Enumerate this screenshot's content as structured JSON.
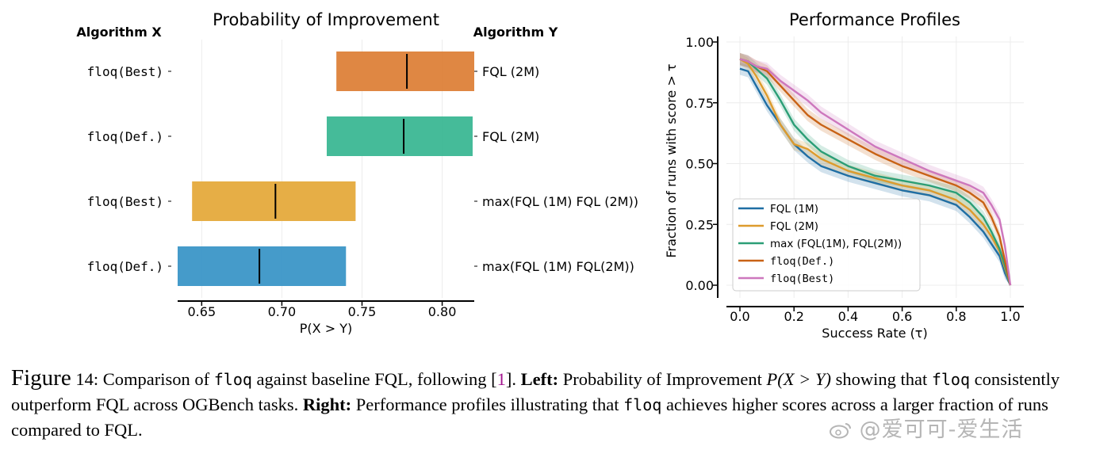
{
  "chart_data": [
    {
      "type": "bar",
      "title": "Probability of Improvement",
      "left_header": "Algorithm X",
      "right_header": "Algorithm Y",
      "xlabel": "P(X > Y)",
      "xlim": [
        0.635,
        0.82
      ],
      "xticks": [
        "0.65",
        "0.70",
        "0.75",
        "0.80"
      ],
      "rows": [
        {
          "x_label": "floq(Best)",
          "y_label": "FQL (2M)",
          "low": 0.734,
          "high": 0.82,
          "median": 0.778,
          "color": "#dd8139"
        },
        {
          "x_label": "floq(Def.)",
          "y_label": "FQL (2M)",
          "low": 0.728,
          "high": 0.819,
          "median": 0.776,
          "color": "#3bb793"
        },
        {
          "x_label": "floq(Best)",
          "y_label": "max(FQL (1M) FQL (2M))",
          "low": 0.644,
          "high": 0.746,
          "median": 0.696,
          "color": "#e5aa3c"
        },
        {
          "x_label": "floq(Def.)",
          "y_label": "max(FQL (1M) FQL(2M))",
          "low": 0.635,
          "high": 0.74,
          "median": 0.686,
          "color": "#3b96c7"
        }
      ]
    },
    {
      "type": "line",
      "title": "Performance Profiles",
      "xlabel": "Success Rate (τ)",
      "ylabel": "Fraction of runs with score > τ",
      "xlim": [
        0,
        1
      ],
      "ylim": [
        0,
        1
      ],
      "xticks": [
        "0.0",
        "0.2",
        "0.4",
        "0.6",
        "0.8",
        "1.0"
      ],
      "yticks": [
        "0.00",
        "0.25",
        "0.50",
        "0.75",
        "1.00"
      ],
      "grid": true,
      "legend_position": "lower-left",
      "series": [
        {
          "name": "FQL (1M)",
          "color": "#1f6ea4",
          "band": 0.025,
          "x": [
            0,
            0.03,
            0.06,
            0.1,
            0.15,
            0.2,
            0.25,
            0.3,
            0.4,
            0.5,
            0.6,
            0.7,
            0.8,
            0.85,
            0.9,
            0.93,
            0.96,
            0.98,
            1.0
          ],
          "y": [
            0.89,
            0.88,
            0.82,
            0.74,
            0.66,
            0.58,
            0.53,
            0.49,
            0.45,
            0.42,
            0.39,
            0.37,
            0.33,
            0.28,
            0.22,
            0.17,
            0.12,
            0.05,
            0.0
          ]
        },
        {
          "name": "FQL (2M)",
          "color": "#dd9b2d",
          "band": 0.025,
          "x": [
            0,
            0.03,
            0.06,
            0.1,
            0.15,
            0.2,
            0.25,
            0.3,
            0.4,
            0.5,
            0.6,
            0.7,
            0.8,
            0.85,
            0.9,
            0.93,
            0.96,
            0.98,
            1.0
          ],
          "y": [
            0.93,
            0.91,
            0.86,
            0.78,
            0.66,
            0.58,
            0.56,
            0.52,
            0.47,
            0.44,
            0.41,
            0.39,
            0.35,
            0.31,
            0.25,
            0.2,
            0.14,
            0.07,
            0.0
          ]
        },
        {
          "name": "max (FQL(1M), FQL(2M))",
          "color": "#2b9e76",
          "band": 0.025,
          "x": [
            0,
            0.03,
            0.06,
            0.1,
            0.15,
            0.2,
            0.25,
            0.3,
            0.4,
            0.5,
            0.6,
            0.7,
            0.8,
            0.85,
            0.9,
            0.93,
            0.96,
            0.98,
            1.0
          ],
          "y": [
            0.93,
            0.92,
            0.89,
            0.85,
            0.76,
            0.66,
            0.6,
            0.55,
            0.49,
            0.45,
            0.43,
            0.41,
            0.38,
            0.34,
            0.28,
            0.22,
            0.15,
            0.08,
            0.0
          ]
        },
        {
          "name": "floq(Def.)",
          "color": "#c86216",
          "band": 0.025,
          "x": [
            0,
            0.03,
            0.06,
            0.1,
            0.15,
            0.2,
            0.25,
            0.3,
            0.4,
            0.5,
            0.6,
            0.7,
            0.8,
            0.85,
            0.9,
            0.93,
            0.96,
            0.98,
            1.0
          ],
          "y": [
            0.93,
            0.92,
            0.9,
            0.88,
            0.82,
            0.76,
            0.7,
            0.66,
            0.6,
            0.54,
            0.49,
            0.45,
            0.41,
            0.38,
            0.34,
            0.28,
            0.2,
            0.1,
            0.0
          ]
        },
        {
          "name": "floq(Best)",
          "color": "#cd77bd",
          "band": 0.025,
          "x": [
            0,
            0.03,
            0.06,
            0.1,
            0.15,
            0.2,
            0.25,
            0.3,
            0.4,
            0.5,
            0.6,
            0.7,
            0.8,
            0.85,
            0.9,
            0.93,
            0.96,
            0.98,
            1.0
          ],
          "y": [
            0.93,
            0.92,
            0.9,
            0.89,
            0.84,
            0.8,
            0.76,
            0.71,
            0.64,
            0.57,
            0.52,
            0.47,
            0.43,
            0.41,
            0.38,
            0.33,
            0.27,
            0.16,
            0.0
          ]
        }
      ]
    }
  ],
  "caption": {
    "figure_label": "Figure",
    "figure_number": "14:",
    "text_a": "Comparison of",
    "code_a": "floq",
    "text_b": "against baseline FQL, following [",
    "ref": "1",
    "text_c": "].",
    "left_label": "Left:",
    "text_d": "Probability of Improvement",
    "math": "P(X > Y)",
    "text_e": "showing that",
    "code_b": "floq",
    "text_f": "consistently outperform FQL across OGBench tasks.",
    "right_label": "Right:",
    "text_g": "Performance profiles illustrating that",
    "code_c": "floq",
    "text_h": "achieves higher scores across a larger fraction of runs compared to FQL."
  },
  "watermark": {
    "text": "@爱可可-爱生活",
    "icon": "weibo-icon"
  }
}
